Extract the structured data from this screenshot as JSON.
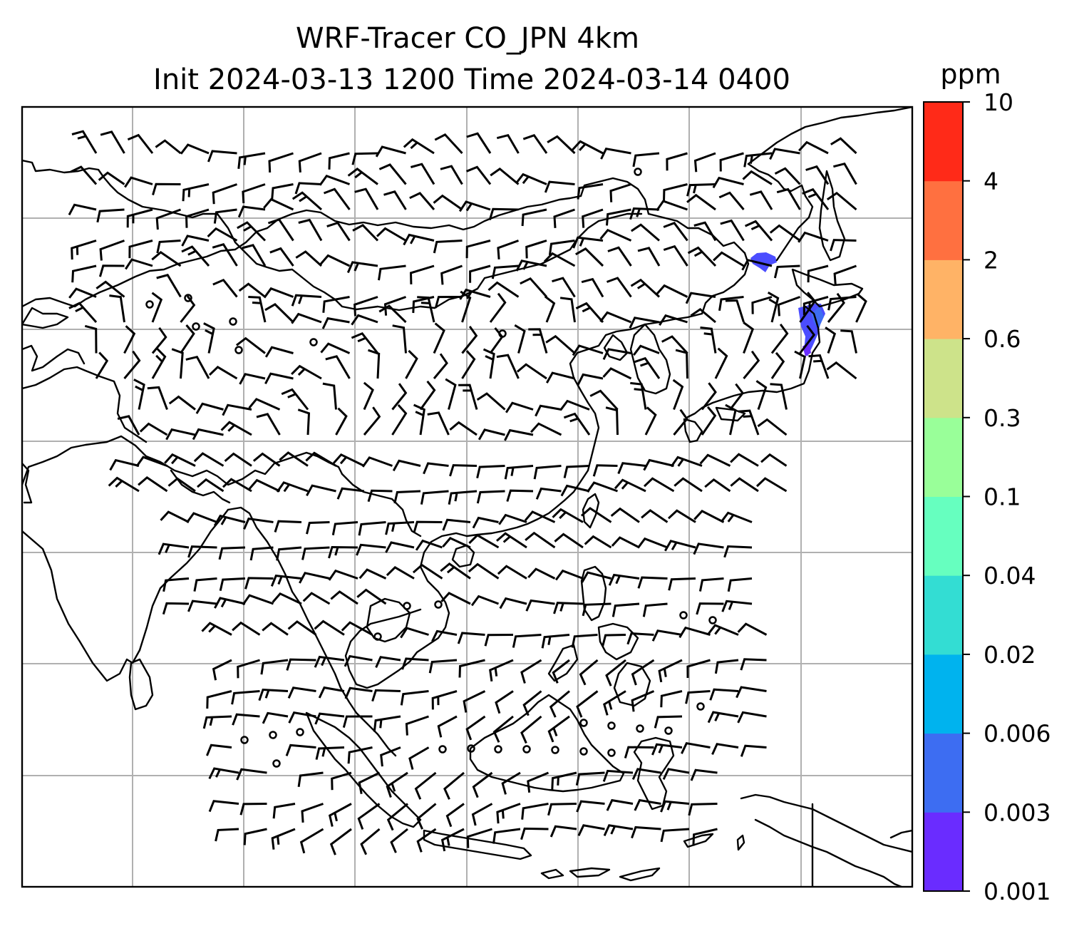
{
  "title": {
    "line1": "WRF-Tracer CO_JPN 4km",
    "line2": "Init 2024-03-13 1200 Time 2024-03-14 0400"
  },
  "colorbar": {
    "unit": "ppm",
    "ticks": [
      "0.001",
      "0.003",
      "0.006",
      "0.02",
      "0.04",
      "0.1",
      "0.3",
      "0.6",
      "2",
      "4",
      "10"
    ],
    "colors": [
      "#6a2cff",
      "#3d6df2",
      "#00b3ee",
      "#33ddd3",
      "#66ffbf",
      "#99ff99",
      "#cde38a",
      "#ffb366",
      "#ff7040",
      "#ff2a18"
    ]
  },
  "map": {
    "grid": true,
    "field_color_low": "#4b4dff",
    "barb_color": "#000000"
  }
}
